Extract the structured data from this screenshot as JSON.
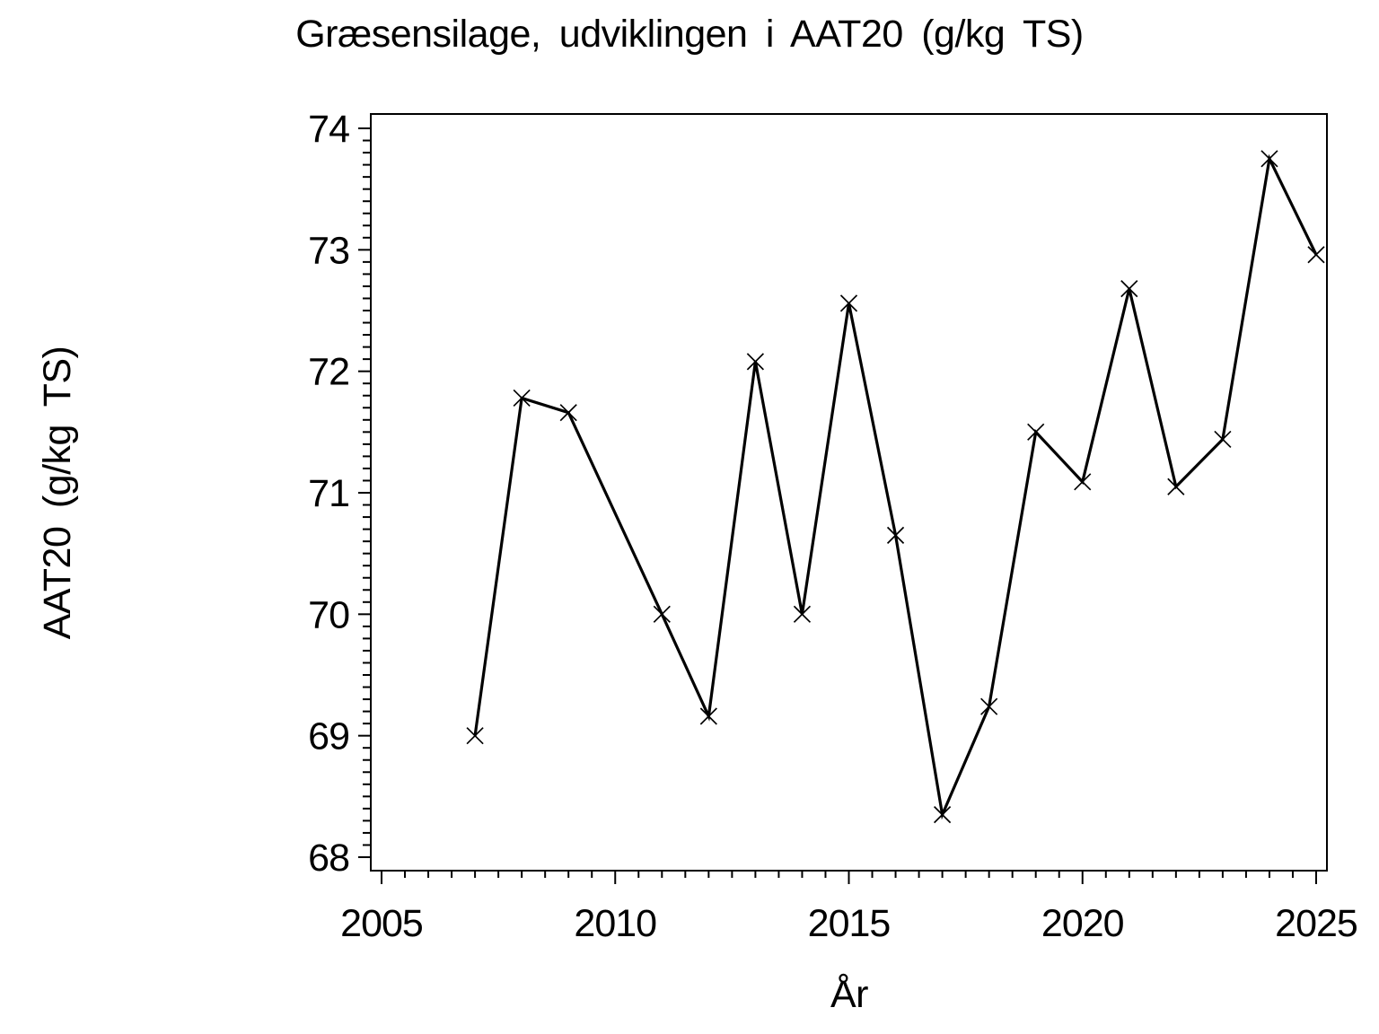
{
  "title": "Græsensilage, udviklingen i AAT20 (g/kg TS)",
  "chart_data": {
    "type": "line",
    "title": "Græsensilage, udviklingen i AAT20 (g/kg TS)",
    "xlabel": "År",
    "ylabel": "AAT20 (g/kg TS)",
    "x": [
      2007,
      2008,
      2009,
      2011,
      2012,
      2013,
      2014,
      2015,
      2016,
      2017,
      2018,
      2019,
      2020,
      2021,
      2022,
      2023,
      2024,
      2025
    ],
    "values": [
      69.0,
      71.78,
      71.66,
      70.0,
      69.16,
      72.08,
      70.0,
      72.56,
      70.65,
      68.35,
      69.24,
      71.5,
      71.09,
      72.68,
      71.05,
      71.44,
      73.75,
      72.96
    ],
    "series_note": "single series, no value plotted for 2010",
    "xlim": [
      2005,
      2025
    ],
    "ylim": [
      68,
      74
    ],
    "x_major_ticks": [
      2005,
      2010,
      2015,
      2020,
      2025
    ],
    "y_major_ticks": [
      68,
      69,
      70,
      71,
      72,
      73,
      74
    ],
    "x_minor_step": 0.5,
    "y_minor_step": 0.1,
    "marker": "x",
    "line_color": "#000000",
    "axis_color": "#000000",
    "background_color": "#ffffff",
    "grid": false,
    "legend": null
  }
}
